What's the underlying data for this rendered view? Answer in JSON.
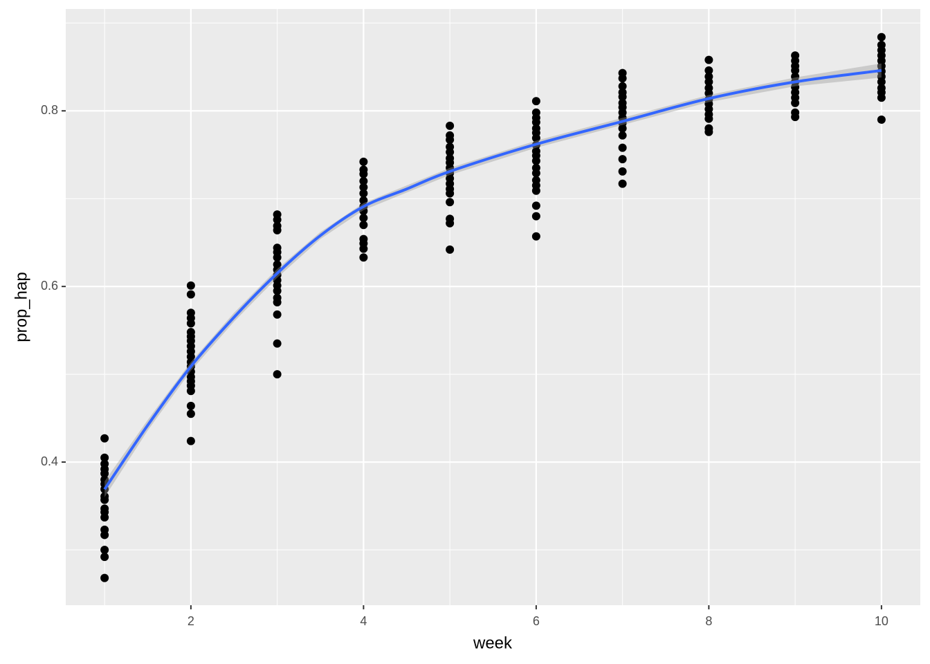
{
  "chart_data": {
    "type": "scatter",
    "x_label": "week",
    "y_label": "prop_hap",
    "xlim": [
      0.55,
      10.45
    ],
    "ylim": [
      0.237,
      0.916
    ],
    "xticks": [
      2,
      4,
      6,
      8,
      10
    ],
    "yticks": [
      0.4,
      0.6,
      0.8
    ],
    "x_minor_ticks": [
      1,
      3,
      5,
      7,
      9
    ],
    "y_minor_ticks": [
      0.3,
      0.5,
      0.7,
      0.9
    ],
    "grid": true,
    "point_color": "#000000",
    "groups": [
      {
        "x": 1,
        "values": [
          0.427,
          0.405,
          0.398,
          0.392,
          0.387,
          0.38,
          0.375,
          0.369,
          0.361,
          0.357,
          0.347,
          0.343,
          0.337,
          0.323,
          0.317,
          0.3,
          0.292,
          0.268
        ]
      },
      {
        "x": 2,
        "values": [
          0.601,
          0.591,
          0.57,
          0.564,
          0.558,
          0.548,
          0.543,
          0.538,
          0.532,
          0.526,
          0.52,
          0.514,
          0.509,
          0.503,
          0.497,
          0.492,
          0.487,
          0.481,
          0.464,
          0.455,
          0.424
        ]
      },
      {
        "x": 3,
        "values": [
          0.682,
          0.676,
          0.669,
          0.664,
          0.644,
          0.639,
          0.633,
          0.625,
          0.619,
          0.613,
          0.607,
          0.601,
          0.595,
          0.587,
          0.582,
          0.568,
          0.535,
          0.5
        ]
      },
      {
        "x": 4,
        "values": [
          0.742,
          0.733,
          0.728,
          0.72,
          0.713,
          0.706,
          0.698,
          0.691,
          0.686,
          0.678,
          0.67,
          0.654,
          0.649,
          0.643,
          0.633
        ]
      },
      {
        "x": 5,
        "values": [
          0.783,
          0.772,
          0.767,
          0.759,
          0.753,
          0.746,
          0.741,
          0.735,
          0.729,
          0.723,
          0.717,
          0.711,
          0.706,
          0.696,
          0.677,
          0.672,
          0.642
        ]
      },
      {
        "x": 6,
        "values": [
          0.811,
          0.798,
          0.792,
          0.787,
          0.78,
          0.775,
          0.769,
          0.761,
          0.754,
          0.749,
          0.743,
          0.735,
          0.729,
          0.721,
          0.715,
          0.709,
          0.692,
          0.68,
          0.657
        ]
      },
      {
        "x": 7,
        "values": [
          0.843,
          0.837,
          0.828,
          0.821,
          0.816,
          0.809,
          0.804,
          0.798,
          0.792,
          0.786,
          0.78,
          0.772,
          0.758,
          0.745,
          0.731,
          0.717
        ]
      },
      {
        "x": 8,
        "values": [
          0.858,
          0.846,
          0.839,
          0.833,
          0.826,
          0.82,
          0.813,
          0.808,
          0.802,
          0.796,
          0.791,
          0.78,
          0.776
        ]
      },
      {
        "x": 9,
        "values": [
          0.863,
          0.857,
          0.851,
          0.846,
          0.839,
          0.833,
          0.827,
          0.821,
          0.815,
          0.809,
          0.798,
          0.793
        ]
      },
      {
        "x": 10,
        "values": [
          0.884,
          0.875,
          0.869,
          0.863,
          0.857,
          0.851,
          0.845,
          0.839,
          0.833,
          0.826,
          0.821,
          0.815,
          0.79
        ]
      }
    ],
    "smooth": {
      "color": "#3366FF",
      "band_color": "#999999",
      "x": [
        1,
        1.5,
        2,
        2.5,
        3,
        3.5,
        4,
        4.5,
        5,
        6,
        7,
        8,
        9,
        10
      ],
      "values": [
        0.369,
        0.442,
        0.509,
        0.565,
        0.615,
        0.658,
        0.691,
        0.711,
        0.731,
        0.762,
        0.788,
        0.814,
        0.833,
        0.846
      ],
      "lower": [
        0.36,
        0.436,
        0.504,
        0.56,
        0.61,
        0.654,
        0.687,
        0.707,
        0.727,
        0.758,
        0.784,
        0.81,
        0.828,
        0.838
      ],
      "upper": [
        0.378,
        0.448,
        0.514,
        0.57,
        0.62,
        0.662,
        0.695,
        0.715,
        0.735,
        0.766,
        0.792,
        0.818,
        0.838,
        0.854
      ]
    }
  }
}
